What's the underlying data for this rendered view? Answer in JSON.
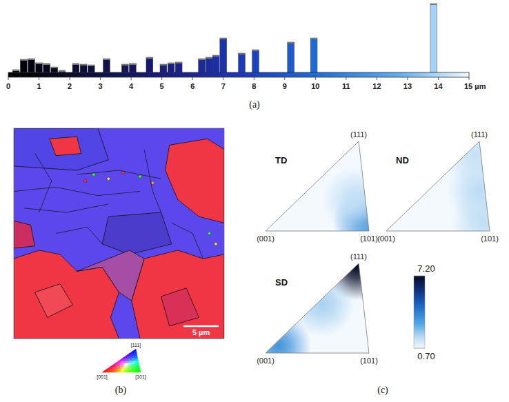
{
  "chart_data": [
    {
      "type": "bar",
      "title": "(a)",
      "x": [
        0.25,
        0.5,
        0.75,
        1.0,
        1.25,
        1.5,
        1.75,
        2.2,
        2.45,
        2.7,
        3.2,
        3.8,
        4.05,
        4.6,
        5.05,
        5.3,
        5.55,
        6.3,
        6.54,
        6.76,
        7.0,
        7.6,
        8.05,
        9.2,
        9.95,
        13.85
      ],
      "values": [
        4,
        19,
        20,
        14,
        13,
        8,
        3,
        13,
        12,
        11,
        20,
        12,
        13,
        22,
        12,
        14,
        15,
        20,
        22,
        25,
        50,
        28,
        33,
        44,
        50,
        100
      ],
      "xlim": [
        0,
        15
      ],
      "xticks": [
        0,
        1,
        2,
        3,
        4,
        5,
        6,
        7,
        8,
        9,
        10,
        11,
        12,
        13,
        14,
        {
          "value": 15,
          "label": "15 µm"
        }
      ],
      "ylim": [
        0,
        100
      ],
      "tick_labels": "x"
    },
    {
      "type": "map",
      "title": "(b)",
      "xlim": [
        0,
        30
      ],
      "ylim": [
        0,
        30
      ],
      "scale_bar": {
        "value": 5,
        "label": "5 µm"
      },
      "legend_labels": [
        "[001]",
        "[101]",
        "[111]"
      ],
      "colors": [
        "#ff0000",
        "#00ff00",
        "#0000ff"
      ]
    },
    {
      "type": "pole_figure",
      "title": "(c)",
      "corner_labels": [
        "(001)",
        "(101)",
        "(111)"
      ],
      "series": [
        {
          "name": "TD",
          "peaks": [
            {
              "a": 0.88,
              "b": 0.1,
              "value": 3.3
            },
            {
              "a": 0.55,
              "b": 0.35,
              "value": 1.6
            }
          ]
        },
        {
          "name": "ND",
          "peaks": [
            {
              "a": 0.5,
              "b": 0.45,
              "value": 1.7
            },
            {
              "a": 0.85,
              "b": 0.1,
              "value": 1.6
            },
            {
              "a": 0.1,
              "b": 0.85,
              "value": 1.5
            }
          ]
        },
        {
          "name": "SD",
          "peaks": [
            {
              "a": 0.02,
              "b": 0.96,
              "value": 7.2
            },
            {
              "a": 0.05,
              "b": 0.08,
              "value": 3.4
            },
            {
              "a": 0.05,
              "b": 0.55,
              "value": 1.9
            }
          ]
        }
      ],
      "colorbar": {
        "range": [
          0.7,
          7.2
        ],
        "ticks": [
          {
            "value": 0.7,
            "label": "0.70"
          },
          {
            "value": 7.2,
            "label": "7.20"
          }
        ]
      }
    }
  ]
}
